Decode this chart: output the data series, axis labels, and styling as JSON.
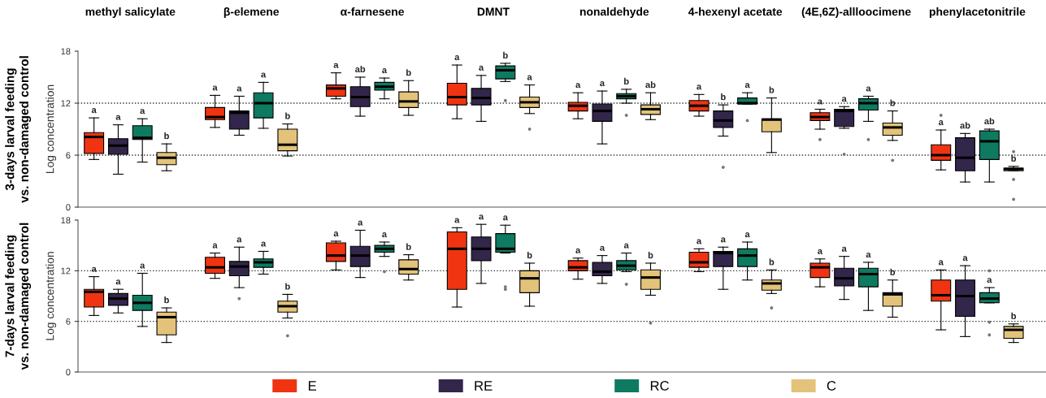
{
  "chart_data": [
    {
      "type": "box",
      "subtitle": "3-days larval feeding\nvs. non-damaged control",
      "ylabel": "Log concentration",
      "legend": "bottom",
      "categories": [
        "methyl salicylate",
        "β-elemene",
        "α-farnesene",
        "DMNT",
        "nonaldehyde",
        "4-hexenyl acetate",
        "(4E,6Z)-allloocimene",
        "phenylacetonitrile"
      ],
      "ylim": [
        0,
        18
      ],
      "yticks": [
        0,
        6,
        12,
        18
      ],
      "ref_lines": [
        {
          "axis": "y",
          "value": 6,
          "line_style": "dotted",
          "color": "#333333"
        },
        {
          "axis": "y",
          "value": 12,
          "line_style": "dotted",
          "color": "#333333"
        }
      ],
      "annotations": [
        "a",
        "a",
        "a",
        "b",
        "a",
        "a",
        "a",
        "b",
        "a",
        "ab",
        "a",
        "b",
        "a",
        "a",
        "b",
        "a",
        "a",
        "a",
        "b",
        "ab",
        "a",
        "b",
        "a",
        "b",
        "a",
        "a",
        "a",
        "b",
        "a",
        "ab",
        "ab",
        "b"
      ],
      "series": [
        {
          "name": "E",
          "color": "#f03412",
          "boxes": [
            {
              "low": 5.5,
              "q1": 6.2,
              "median": 8.1,
              "q3": 8.6,
              "high": 10.3
            },
            {
              "low": 9.2,
              "q1": 10.1,
              "median": 10.4,
              "q3": 11.5,
              "high": 12.9
            },
            {
              "low": 12.5,
              "q1": 12.8,
              "median": 13.7,
              "q3": 14.1,
              "high": 15.5
            },
            {
              "low": 10.2,
              "q1": 11.8,
              "median": 12.7,
              "q3": 14.3,
              "high": 16.4
            },
            {
              "low": 10.2,
              "q1": 11.1,
              "median": 11.7,
              "q3": 12.1,
              "high": 13.2
            },
            {
              "low": 10.5,
              "q1": 11.1,
              "median": 11.7,
              "q3": 12.3,
              "high": 13.0
            },
            {
              "low": 9.0,
              "q1": 10.0,
              "median": 10.4,
              "q3": 10.9,
              "high": 11.3,
              "outliers": [
                7.8
              ]
            },
            {
              "low": 4.3,
              "q1": 5.4,
              "median": 6.0,
              "q3": 7.2,
              "high": 8.9,
              "outliers": [
                10.6
              ]
            }
          ]
        },
        {
          "name": "RE",
          "color": "#33264b",
          "boxes": [
            {
              "low": 3.8,
              "q1": 6.1,
              "median": 7.1,
              "q3": 7.9,
              "high": 9.5
            },
            {
              "low": 8.3,
              "q1": 9.0,
              "median": 10.9,
              "q3": 11.1,
              "high": 12.8
            },
            {
              "low": 10.5,
              "q1": 11.6,
              "median": 12.7,
              "q3": 13.9,
              "high": 15.0
            },
            {
              "low": 9.9,
              "q1": 11.8,
              "median": 12.6,
              "q3": 13.7,
              "high": 15.2
            },
            {
              "low": 7.3,
              "q1": 9.9,
              "median": 11.1,
              "q3": 11.9,
              "high": 13.4
            },
            {
              "low": 8.2,
              "q1": 9.2,
              "median": 10.0,
              "q3": 11.1,
              "high": 11.8,
              "outliers": [
                4.6
              ]
            },
            {
              "low": 9.1,
              "q1": 9.3,
              "median": 11.1,
              "q3": 11.3,
              "high": 11.6,
              "outliers": [
                6.1
              ]
            },
            {
              "low": 2.9,
              "q1": 4.2,
              "median": 5.7,
              "q3": 8.0,
              "high": 8.5
            }
          ]
        },
        {
          "name": "RC",
          "color": "#0e7a60",
          "boxes": [
            {
              "low": 5.2,
              "q1": 7.8,
              "median": 8.0,
              "q3": 9.4,
              "high": 10.2
            },
            {
              "low": 9.1,
              "q1": 10.3,
              "median": 12.0,
              "q3": 13.2,
              "high": 14.4
            },
            {
              "low": 12.5,
              "q1": 13.5,
              "median": 13.9,
              "q3": 14.4,
              "high": 14.9
            },
            {
              "low": 14.5,
              "q1": 14.8,
              "median": 15.8,
              "q3": 16.3,
              "high": 16.6,
              "outliers": [
                12.3
              ]
            },
            {
              "low": 12.0,
              "q1": 12.5,
              "median": 12.8,
              "q3": 13.1,
              "high": 13.6,
              "outliers": [
                10.6
              ]
            },
            {
              "low": 11.9,
              "q1": 11.9,
              "median": 12.0,
              "q3": 12.6,
              "high": 13.2,
              "outliers": [
                10.0
              ]
            },
            {
              "low": 9.9,
              "q1": 11.2,
              "median": 12.0,
              "q3": 12.5,
              "high": 12.8,
              "outliers": [
                7.8
              ]
            },
            {
              "low": 2.9,
              "q1": 5.5,
              "median": 7.6,
              "q3": 8.8,
              "high": 9.0
            }
          ]
        },
        {
          "name": "C",
          "color": "#e3c37a",
          "boxes": [
            {
              "low": 4.2,
              "q1": 4.9,
              "median": 5.7,
              "q3": 6.3,
              "high": 7.3
            },
            {
              "low": 5.9,
              "q1": 6.5,
              "median": 7.2,
              "q3": 9.0,
              "high": 9.6
            },
            {
              "low": 10.6,
              "q1": 11.5,
              "median": 12.2,
              "q3": 13.3,
              "high": 14.6
            },
            {
              "low": 10.8,
              "q1": 11.5,
              "median": 12.1,
              "q3": 12.7,
              "high": 14.1,
              "outliers": [
                9.0
              ]
            },
            {
              "low": 10.1,
              "q1": 10.7,
              "median": 11.3,
              "q3": 11.8,
              "high": 13.2
            },
            {
              "low": 6.3,
              "q1": 8.7,
              "median": 10.1,
              "q3": 10.2,
              "high": 12.6
            },
            {
              "low": 7.7,
              "q1": 8.3,
              "median": 9.2,
              "q3": 9.7,
              "high": 11.1,
              "outliers": [
                5.4
              ]
            },
            {
              "low": 4.2,
              "q1": 4.2,
              "median": 4.4,
              "q3": 4.5,
              "high": 4.7,
              "outliers": [
                6.4,
                3.2,
                0.9
              ]
            }
          ]
        }
      ]
    },
    {
      "type": "box",
      "subtitle": "7-days larval feeding\nvs. non-damaged control",
      "ylabel": "Log concentration",
      "categories": [
        null,
        null,
        null,
        null,
        null,
        null,
        null,
        null
      ],
      "ylim": [
        0,
        18
      ],
      "yticks": [
        0,
        6,
        12,
        18
      ],
      "ref_lines": [
        {
          "axis": "y",
          "value": 6,
          "line_style": "dotted",
          "color": "#333333"
        },
        {
          "axis": "y",
          "value": 12,
          "line_style": "dotted",
          "color": "#333333"
        }
      ],
      "annotations": [
        "a",
        "a",
        "a",
        "b",
        "a",
        "a",
        "a",
        "b",
        "a",
        "a",
        "a",
        "b",
        "a",
        "a",
        "a",
        "b",
        "a",
        "a",
        "a",
        "b",
        "a",
        "a",
        "a",
        "b",
        "a",
        "a",
        "a",
        "b",
        "a",
        "a",
        "a",
        "b"
      ],
      "series": [
        {
          "color": "#f03412",
          "boxes": [
            {
              "low": 6.7,
              "q1": 7.7,
              "median": 9.5,
              "q3": 9.8,
              "high": 11.3
            },
            {
              "low": 11.1,
              "q1": 11.7,
              "median": 12.4,
              "q3": 13.6,
              "high": 14.1
            },
            {
              "low": 12.1,
              "q1": 13.1,
              "median": 13.8,
              "q3": 15.3,
              "high": 15.5
            },
            {
              "low": 7.7,
              "q1": 9.8,
              "median": 14.6,
              "q3": 16.6,
              "high": 17.1
            },
            {
              "low": 11.0,
              "q1": 12.0,
              "median": 12.4,
              "q3": 13.2,
              "high": 13.5
            },
            {
              "low": 11.9,
              "q1": 12.4,
              "median": 13.0,
              "q3": 14.2,
              "high": 14.6
            },
            {
              "low": 10.1,
              "q1": 11.2,
              "median": 12.4,
              "q3": 12.9,
              "high": 13.4
            },
            {
              "low": 5.0,
              "q1": 8.4,
              "median": 9.1,
              "q3": 10.9,
              "high": 12.1
            }
          ]
        },
        {
          "color": "#33264b",
          "boxes": [
            {
              "low": 7.0,
              "q1": 7.9,
              "median": 8.7,
              "q3": 9.3,
              "high": 9.8
            },
            {
              "low": 10.0,
              "q1": 11.4,
              "median": 12.5,
              "q3": 13.1,
              "high": 14.8,
              "outliers": [
                8.7
              ]
            },
            {
              "low": 11.2,
              "q1": 12.5,
              "median": 13.8,
              "q3": 14.9,
              "high": 16.8
            },
            {
              "low": 10.5,
              "q1": 13.2,
              "median": 14.6,
              "q3": 16.0,
              "high": 17.5
            },
            {
              "low": 10.5,
              "q1": 11.4,
              "median": 11.9,
              "q3": 13.0,
              "high": 13.8
            },
            {
              "low": 9.8,
              "q1": 12.5,
              "median": 14.1,
              "q3": 14.3,
              "high": 14.8
            },
            {
              "low": 8.6,
              "q1": 10.2,
              "median": 11.1,
              "q3": 12.3,
              "high": 13.7
            },
            {
              "low": 4.2,
              "q1": 6.6,
              "median": 9.0,
              "q3": 10.9,
              "high": 12.6
            }
          ]
        },
        {
          "color": "#0e7a60",
          "boxes": [
            {
              "low": 5.4,
              "q1": 7.3,
              "median": 8.2,
              "q3": 9.1,
              "high": 11.7
            },
            {
              "low": 11.6,
              "q1": 12.4,
              "median": 13.0,
              "q3": 13.4,
              "high": 14.3
            },
            {
              "low": 13.7,
              "q1": 14.2,
              "median": 14.6,
              "q3": 15.0,
              "high": 15.4,
              "outliers": [
                11.9
              ]
            },
            {
              "low": 14.1,
              "q1": 14.2,
              "median": 14.6,
              "q3": 16.4,
              "high": 17.4,
              "outliers": [
                10.1,
                9.8
              ]
            },
            {
              "low": 11.9,
              "q1": 12.1,
              "median": 12.6,
              "q3": 13.2,
              "high": 14.1,
              "outliers": [
                10.4
              ]
            },
            {
              "low": 10.9,
              "q1": 12.5,
              "median": 13.8,
              "q3": 14.6,
              "high": 15.4
            },
            {
              "low": 7.3,
              "q1": 10.1,
              "median": 11.6,
              "q3": 12.3,
              "high": 13.0
            },
            {
              "low": 8.2,
              "q1": 8.2,
              "median": 8.7,
              "q3": 9.4,
              "high": 10.0,
              "outliers": [
                12.0,
                5.9,
                4.4
              ]
            }
          ]
        },
        {
          "color": "#e3c37a",
          "boxes": [
            {
              "low": 3.5,
              "q1": 4.4,
              "median": 6.5,
              "q3": 7.1,
              "high": 7.6
            },
            {
              "low": 6.4,
              "q1": 7.1,
              "median": 7.8,
              "q3": 8.4,
              "high": 9.2,
              "outliers": [
                4.3
              ]
            },
            {
              "low": 10.9,
              "q1": 11.6,
              "median": 12.2,
              "q3": 13.3,
              "high": 13.9
            },
            {
              "low": 7.8,
              "q1": 9.4,
              "median": 11.1,
              "q3": 12.0,
              "high": 12.9
            },
            {
              "low": 9.1,
              "q1": 9.8,
              "median": 11.2,
              "q3": 12.1,
              "high": 12.9,
              "outliers": [
                5.8
              ]
            },
            {
              "low": 9.3,
              "q1": 9.7,
              "median": 10.5,
              "q3": 10.9,
              "high": 12.1,
              "outliers": [
                7.6
              ]
            },
            {
              "low": 6.5,
              "q1": 7.8,
              "median": 9.2,
              "q3": 9.4,
              "high": 10.9
            },
            {
              "low": 3.5,
              "q1": 4.0,
              "median": 5.0,
              "q3": 5.4,
              "high": 5.7
            }
          ]
        }
      ]
    }
  ]
}
